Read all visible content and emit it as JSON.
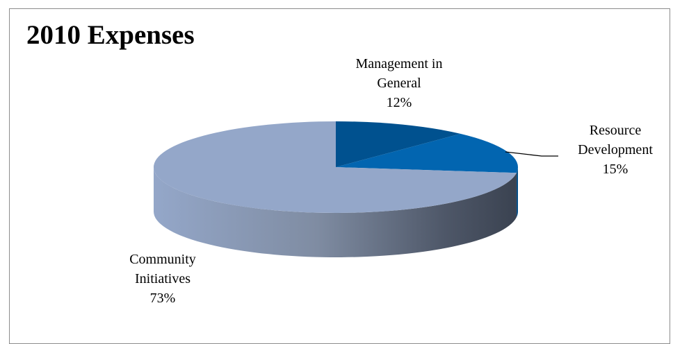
{
  "chart_data": {
    "type": "pie",
    "title": "2010 Expenses",
    "three_d": true,
    "categories": [
      "Management in General",
      "Resource Development",
      "Community Initiatives"
    ],
    "values": [
      12,
      15,
      73
    ],
    "unit": "%",
    "labels": [
      {
        "lines": [
          "Management in",
          "General"
        ],
        "value": "12%"
      },
      {
        "lines": [
          "Resource",
          "Development"
        ],
        "value": "15%"
      },
      {
        "lines": [
          "Community",
          "Initiatives"
        ],
        "value": "73%"
      }
    ],
    "colors": [
      "#00518f",
      "#0265b0",
      "#94a7c9"
    ],
    "side_colors": [
      "#003b68",
      "#024c85",
      "#3b4450"
    ],
    "legend": "none"
  }
}
